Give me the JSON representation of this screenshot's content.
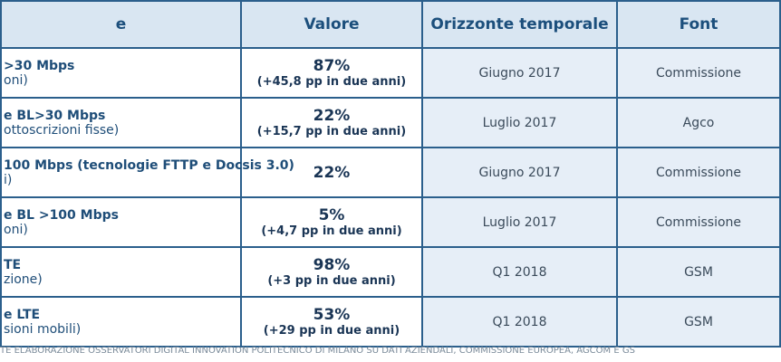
{
  "header": {
    "columns": [
      "e",
      "Valore",
      "Orizzonte temporale",
      "Font"
    ]
  },
  "rows": [
    {
      "label": [
        ">30 Mbps",
        "oni)"
      ],
      "value": [
        "87%",
        "(+45,8 pp in due anni)"
      ],
      "period": "Giugno 2017",
      "source": "Commissione"
    },
    {
      "label": [
        "e BL>30 Mbps",
        "ottoscrizioni fisse)"
      ],
      "value": [
        "22%",
        "(+15,7 pp in due anni)"
      ],
      "period": "Luglio 2017",
      "source": "Agco"
    },
    {
      "label": [
        "100 Mbps  (tecnologie FTTP e Docsis 3.0)",
        "i)"
      ],
      "value": [
        "22%"
      ],
      "period": "Giugno 2017",
      "source": "Commissione"
    },
    {
      "label": [
        "e BL >100 Mbps",
        "oni)"
      ],
      "value": [
        "5%",
        "(+4,7 pp in due anni)"
      ],
      "period": "Luglio 2017",
      "source": "Commissione"
    },
    {
      "label": [
        "TE",
        "zione)"
      ],
      "value": [
        "98%",
        "(+3 pp in due anni)"
      ],
      "period": "Q1 2018",
      "source": "GSM"
    },
    {
      "label": [
        "e LTE",
        "sioni mobili)"
      ],
      "value": [
        "53%",
        "(+29 pp in due anni)"
      ],
      "period": "Q1 2018",
      "source": "GSM"
    }
  ],
  "footer": "TE ELABORAZIONE OSSERVATORI DIGITAL INNOVATION POLITECNICO DI MILANO SU DATI AZIENDALI, COMMISSIONE EUROPEA, AGCOM E GS"
}
